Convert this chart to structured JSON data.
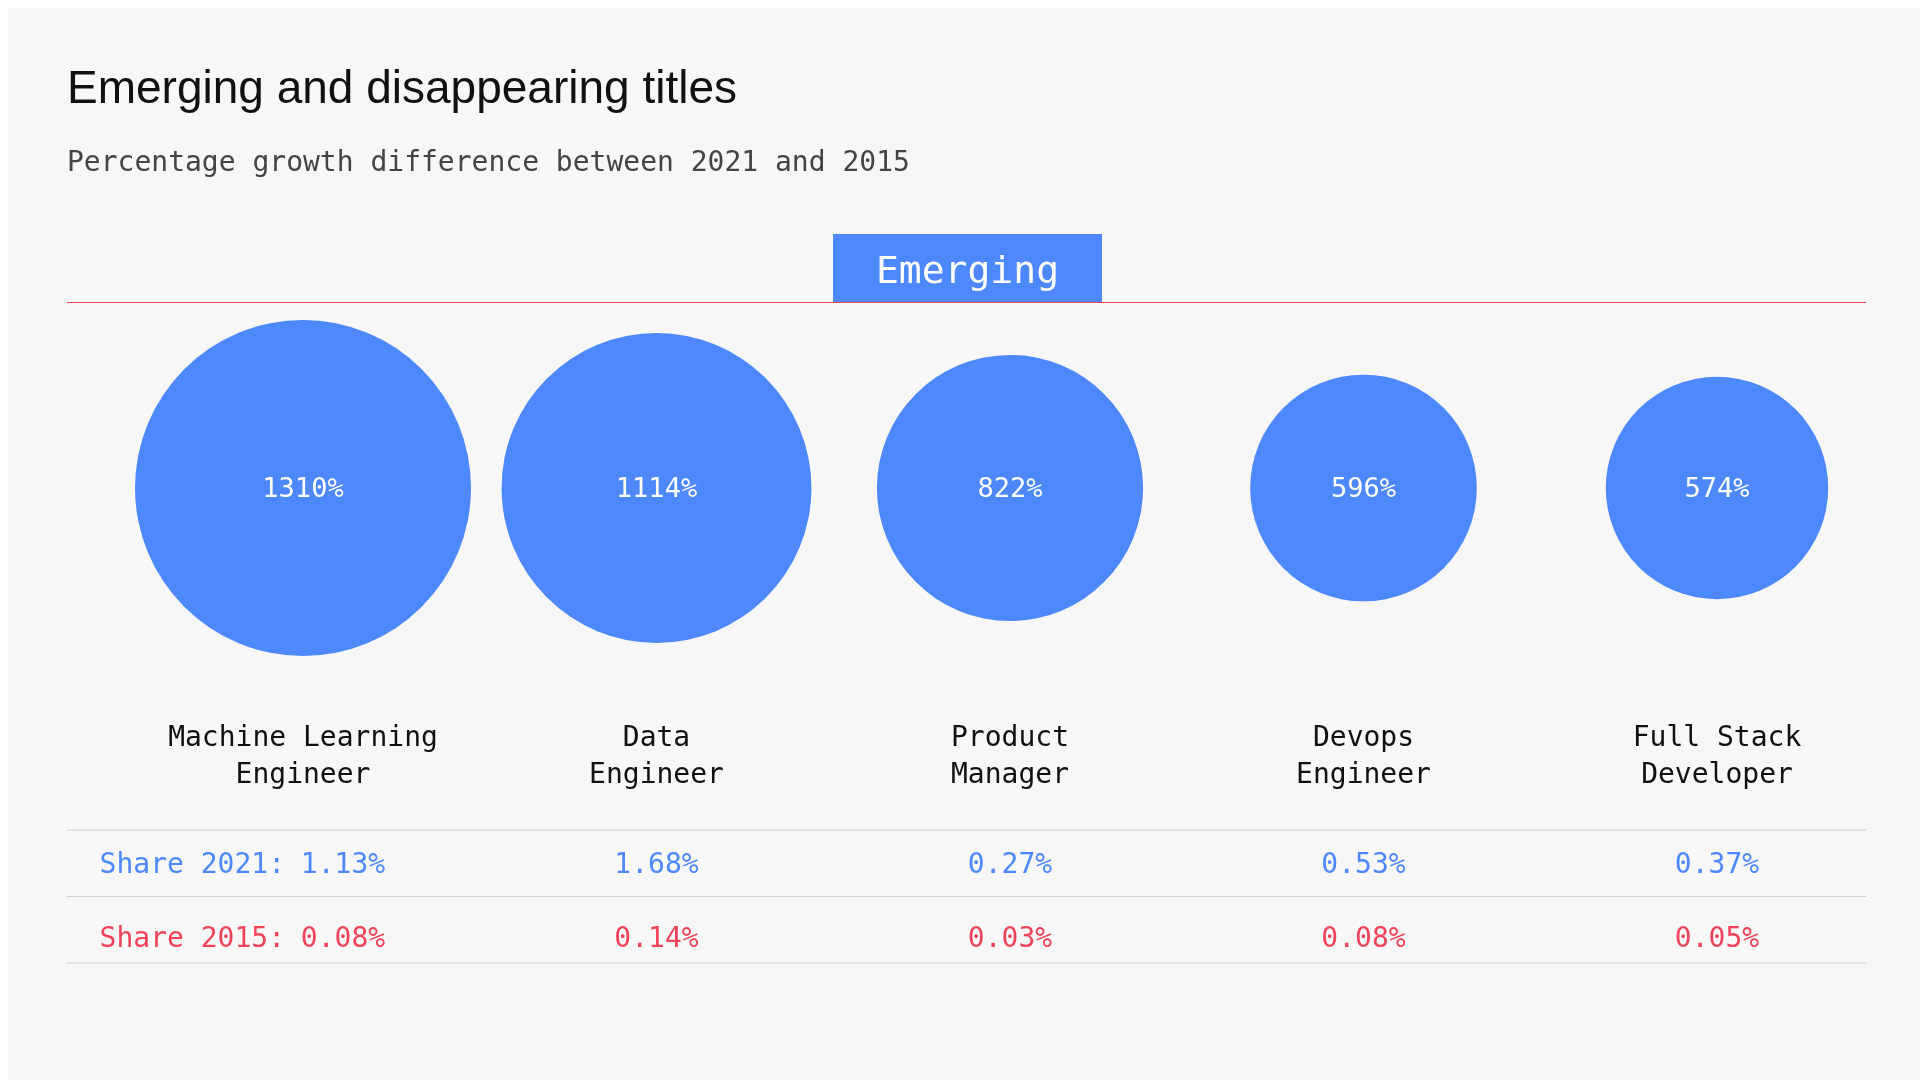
{
  "chart_data": {
    "type": "other",
    "title": "Emerging and disappearing titles",
    "subtitle": "Percentage growth difference between 2021 and 2015",
    "annotations": [
      "Emerging"
    ],
    "categories": [
      "Machine Learning Engineer",
      "Data Engineer",
      "Product Manager",
      "Devops Engineer",
      "Full Stack Developer"
    ],
    "series": [
      {
        "type": "bubble",
        "color": "#4d88ff",
        "values": [
          1310,
          1114,
          822,
          596,
          574
        ],
        "value_labels": [
          "1310%",
          "1114%",
          "822%",
          "596%",
          "574%"
        ]
      },
      {
        "name": "Share 2021:",
        "color": "#4d88ff",
        "values": [
          1.13,
          1.68,
          0.27,
          0.53,
          0.37
        ],
        "value_labels": [
          "1.13%",
          "1.68%",
          "0.27%",
          "0.53%",
          "0.37%"
        ]
      },
      {
        "name": "Share 2015:",
        "color": "#f0435a",
        "values": [
          0.08,
          0.14,
          0.03,
          0.08,
          0.05
        ],
        "value_labels": [
          "0.08%",
          "0.14%",
          "0.03%",
          "0.08%",
          "0.05%"
        ]
      }
    ]
  }
}
